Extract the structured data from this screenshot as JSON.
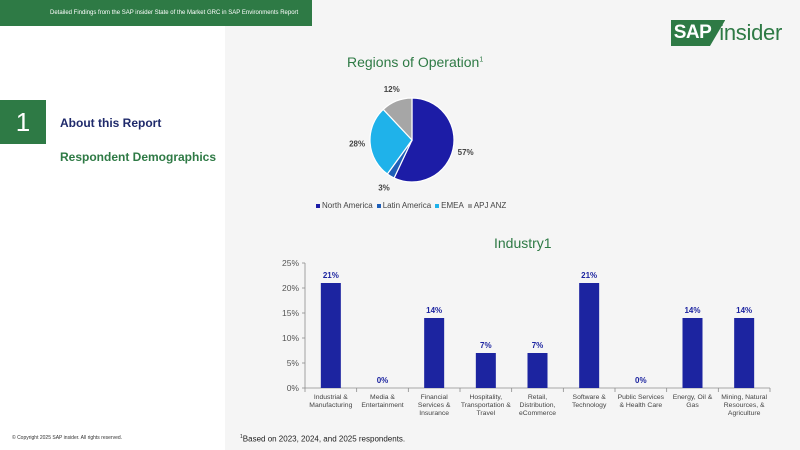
{
  "header": {
    "report_title": "Detailed Findings from the SAP insider State of the Market GRC in SAP Environments Report"
  },
  "logo": {
    "sap": "SAP",
    "insider": "insider"
  },
  "section": {
    "number": "1",
    "title": "About this Report",
    "subtitle": "Respondent Demographics"
  },
  "copyright": "© Copyright 2025 SAP insider. All rights reserved.",
  "footnote": {
    "marker": "1",
    "text": "Based on 2023, 2024, and 2025 respondents."
  },
  "colors": {
    "brand_green": "#2e7a45",
    "navy": "#1f2a6b",
    "bar": "#1c24a0"
  },
  "chart_data": [
    {
      "type": "pie",
      "title": "Regions of Operation",
      "title_superscript": "1",
      "legend_position": "bottom",
      "slices": [
        {
          "name": "North America",
          "value": 57,
          "label": "57%",
          "color": "#1c1ca6"
        },
        {
          "name": "Latin America",
          "value": 3,
          "label": "3%",
          "color": "#1f5fb8"
        },
        {
          "name": "EMEA",
          "value": 28,
          "label": "28%",
          "color": "#1fb2ea"
        },
        {
          "name": "APJ ANZ",
          "value": 12,
          "label": "12%",
          "color": "#a6a6a6"
        }
      ]
    },
    {
      "type": "bar",
      "title": "Industry1",
      "ylim": [
        0,
        25
      ],
      "yticks": [
        0,
        5,
        10,
        15,
        20,
        25
      ],
      "ytick_labels": [
        "0%",
        "5%",
        "10%",
        "15%",
        "20%",
        "25%"
      ],
      "grid": false,
      "categories": [
        [
          "Industrial &",
          "Manufacturing"
        ],
        [
          "Media &",
          "Entertainment"
        ],
        [
          "Financial",
          "Services &",
          "Insurance"
        ],
        [
          "Hospitality,",
          "Transportation &",
          "Travel"
        ],
        [
          "Retail,",
          "Distribution,",
          "eCommerce"
        ],
        [
          "Software &",
          "Technology"
        ],
        [
          "Public Services",
          "& Health Care"
        ],
        [
          "Energy, Oil &",
          "Gas"
        ],
        [
          "Mining, Natural",
          "Resources, &",
          "Agriculture"
        ]
      ],
      "values": [
        21,
        0,
        14,
        7,
        7,
        21,
        0,
        14,
        14
      ],
      "value_labels": [
        "21%",
        "0%",
        "14%",
        "7%",
        "7%",
        "21%",
        "0%",
        "14%",
        "14%"
      ]
    }
  ]
}
